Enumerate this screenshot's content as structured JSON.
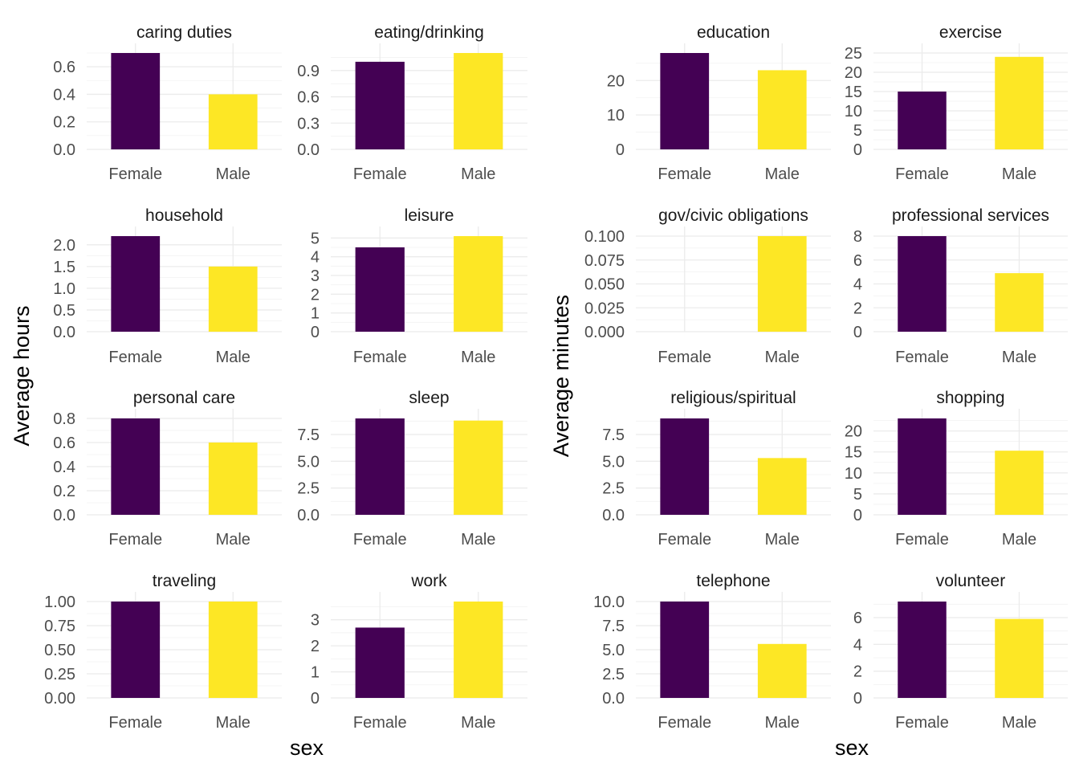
{
  "colors": {
    "Female": "#440154",
    "Male": "#FDE725",
    "grid_major": "#ebebeb",
    "grid_minor": "#f2f2f2"
  },
  "figures": [
    {
      "ylabel": "Average hours",
      "xlabel": "sex"
    },
    {
      "ylabel": "Average minutes",
      "xlabel": "sex"
    }
  ],
  "chart_data": [
    {
      "type": "bar",
      "figure": 0,
      "row": 0,
      "col": 0,
      "title": "caring duties",
      "categories": [
        "Female",
        "Male"
      ],
      "values": [
        0.7,
        0.4
      ],
      "ylim": [
        0,
        0.7
      ],
      "yticks": [
        0,
        0.2,
        0.4,
        0.6
      ],
      "tick_labels": [
        "0.0",
        "0.2",
        "0.4",
        "0.6"
      ]
    },
    {
      "type": "bar",
      "figure": 0,
      "row": 0,
      "col": 1,
      "title": "eating/drinking",
      "categories": [
        "Female",
        "Male"
      ],
      "values": [
        1.0,
        1.1
      ],
      "ylim": [
        0,
        1.1
      ],
      "yticks": [
        0,
        0.3,
        0.6,
        0.9
      ],
      "tick_labels": [
        "0.0",
        "0.3",
        "0.6",
        "0.9"
      ]
    },
    {
      "type": "bar",
      "figure": 0,
      "row": 1,
      "col": 0,
      "title": "household",
      "categories": [
        "Female",
        "Male"
      ],
      "values": [
        2.2,
        1.5
      ],
      "ylim": [
        0,
        2.2
      ],
      "yticks": [
        0,
        0.5,
        1.0,
        1.5,
        2.0
      ],
      "tick_labels": [
        "0.0",
        "0.5",
        "1.0",
        "1.5",
        "2.0"
      ]
    },
    {
      "type": "bar",
      "figure": 0,
      "row": 1,
      "col": 1,
      "title": "leisure",
      "categories": [
        "Female",
        "Male"
      ],
      "values": [
        4.5,
        5.1
      ],
      "ylim": [
        0,
        5.1
      ],
      "yticks": [
        0,
        1,
        2,
        3,
        4,
        5
      ],
      "tick_labels": [
        "0",
        "1",
        "2",
        "3",
        "4",
        "5"
      ]
    },
    {
      "type": "bar",
      "figure": 0,
      "row": 2,
      "col": 0,
      "title": "personal care",
      "categories": [
        "Female",
        "Male"
      ],
      "values": [
        0.8,
        0.6
      ],
      "ylim": [
        0,
        0.8
      ],
      "yticks": [
        0,
        0.2,
        0.4,
        0.6,
        0.8
      ],
      "tick_labels": [
        "0.0",
        "0.2",
        "0.4",
        "0.6",
        "0.8"
      ]
    },
    {
      "type": "bar",
      "figure": 0,
      "row": 2,
      "col": 1,
      "title": "sleep",
      "categories": [
        "Female",
        "Male"
      ],
      "values": [
        9.0,
        8.8
      ],
      "ylim": [
        0,
        9.0
      ],
      "yticks": [
        0,
        2.5,
        5.0,
        7.5
      ],
      "tick_labels": [
        "0.0",
        "2.5",
        "5.0",
        "7.5"
      ]
    },
    {
      "type": "bar",
      "figure": 0,
      "row": 3,
      "col": 0,
      "title": "traveling",
      "categories": [
        "Female",
        "Male"
      ],
      "values": [
        1.0,
        1.0
      ],
      "ylim": [
        0,
        1.0
      ],
      "yticks": [
        0,
        0.25,
        0.5,
        0.75,
        1.0
      ],
      "tick_labels": [
        "0.00",
        "0.25",
        "0.50",
        "0.75",
        "1.00"
      ]
    },
    {
      "type": "bar",
      "figure": 0,
      "row": 3,
      "col": 1,
      "title": "work",
      "categories": [
        "Female",
        "Male"
      ],
      "values": [
        2.7,
        3.7
      ],
      "ylim": [
        0,
        3.7
      ],
      "yticks": [
        0,
        1,
        2,
        3
      ],
      "tick_labels": [
        "0",
        "1",
        "2",
        "3"
      ]
    },
    {
      "type": "bar",
      "figure": 1,
      "row": 0,
      "col": 0,
      "title": "education",
      "categories": [
        "Female",
        "Male"
      ],
      "values": [
        28.0,
        23.0
      ],
      "ylim": [
        0,
        28.0
      ],
      "yticks": [
        0,
        10,
        20
      ],
      "tick_labels": [
        "0",
        "10",
        "20"
      ]
    },
    {
      "type": "bar",
      "figure": 1,
      "row": 0,
      "col": 1,
      "title": "exercise",
      "categories": [
        "Female",
        "Male"
      ],
      "values": [
        15.0,
        24.0
      ],
      "ylim": [
        0,
        25.0
      ],
      "yticks": [
        0,
        5,
        10,
        15,
        20,
        25
      ],
      "tick_labels": [
        "0",
        "5",
        "10",
        "15",
        "20",
        "25"
      ]
    },
    {
      "type": "bar",
      "figure": 1,
      "row": 1,
      "col": 0,
      "title": "gov/civic obligations",
      "categories": [
        "Female",
        "Male"
      ],
      "values": [
        0,
        0.1
      ],
      "ylim": [
        0,
        0.1
      ],
      "yticks": [
        0,
        0.025,
        0.05,
        0.075,
        0.1
      ],
      "tick_labels": [
        "0.000",
        "0.025",
        "0.050",
        "0.075",
        "0.100"
      ]
    },
    {
      "type": "bar",
      "figure": 1,
      "row": 1,
      "col": 1,
      "title": "professional services",
      "categories": [
        "Female",
        "Male"
      ],
      "values": [
        8.0,
        4.9
      ],
      "ylim": [
        0,
        8.0
      ],
      "yticks": [
        0,
        2,
        4,
        6,
        8
      ],
      "tick_labels": [
        "0",
        "2",
        "4",
        "6",
        "8"
      ]
    },
    {
      "type": "bar",
      "figure": 1,
      "row": 2,
      "col": 0,
      "title": "religious/spiritual",
      "categories": [
        "Female",
        "Male"
      ],
      "values": [
        9.0,
        5.3
      ],
      "ylim": [
        0,
        9.0
      ],
      "yticks": [
        0,
        2.5,
        5.0,
        7.5
      ],
      "tick_labels": [
        "0.0",
        "2.5",
        "5.0",
        "7.5"
      ]
    },
    {
      "type": "bar",
      "figure": 1,
      "row": 2,
      "col": 1,
      "title": "shopping",
      "categories": [
        "Female",
        "Male"
      ],
      "values": [
        23.0,
        15.3
      ],
      "ylim": [
        0,
        23.0
      ],
      "yticks": [
        0,
        5,
        10,
        15,
        20
      ],
      "tick_labels": [
        "0",
        "5",
        "10",
        "15",
        "20"
      ]
    },
    {
      "type": "bar",
      "figure": 1,
      "row": 3,
      "col": 0,
      "title": "telephone",
      "categories": [
        "Female",
        "Male"
      ],
      "values": [
        10.0,
        5.6
      ],
      "ylim": [
        0,
        10.0
      ],
      "yticks": [
        0,
        2.5,
        5.0,
        7.5,
        10.0
      ],
      "tick_labels": [
        "0.0",
        "2.5",
        "5.0",
        "7.5",
        "10.0"
      ]
    },
    {
      "type": "bar",
      "figure": 1,
      "row": 3,
      "col": 1,
      "title": "volunteer",
      "categories": [
        "Female",
        "Male"
      ],
      "values": [
        7.2,
        5.9
      ],
      "ylim": [
        0,
        7.2
      ],
      "yticks": [
        0,
        2,
        4,
        6
      ],
      "tick_labels": [
        "0",
        "2",
        "4",
        "6"
      ]
    }
  ]
}
